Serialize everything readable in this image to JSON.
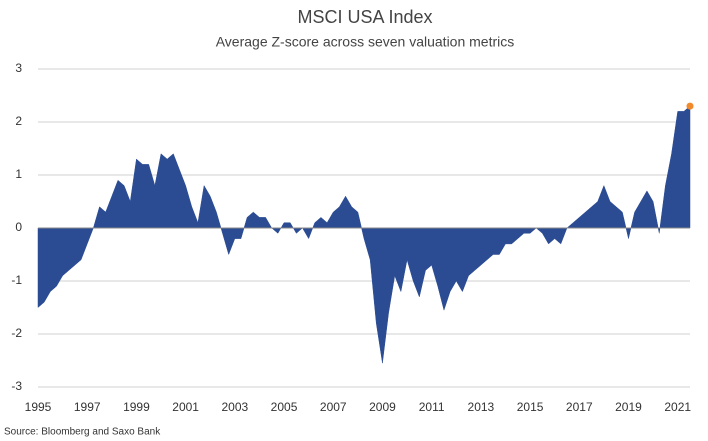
{
  "chart_data": {
    "type": "area",
    "title": "MSCI USA Index",
    "subtitle": "Average Z-score across seven valuation metrics",
    "source": "Source: Bloomberg and Saxo Bank",
    "x": [
      1995.0,
      1995.25,
      1995.5,
      1995.75,
      1996.0,
      1996.25,
      1996.5,
      1996.75,
      1997.0,
      1997.25,
      1997.5,
      1997.75,
      1998.0,
      1998.25,
      1998.5,
      1998.75,
      1999.0,
      1999.25,
      1999.5,
      1999.75,
      2000.0,
      2000.25,
      2000.5,
      2000.75,
      2001.0,
      2001.25,
      2001.5,
      2001.75,
      2002.0,
      2002.25,
      2002.5,
      2002.75,
      2003.0,
      2003.25,
      2003.5,
      2003.75,
      2004.0,
      2004.25,
      2004.5,
      2004.75,
      2005.0,
      2005.25,
      2005.5,
      2005.75,
      2006.0,
      2006.25,
      2006.5,
      2006.75,
      2007.0,
      2007.25,
      2007.5,
      2007.75,
      2008.0,
      2008.25,
      2008.5,
      2008.75,
      2009.0,
      2009.25,
      2009.5,
      2009.75,
      2010.0,
      2010.25,
      2010.5,
      2010.75,
      2011.0,
      2011.25,
      2011.5,
      2011.75,
      2012.0,
      2012.25,
      2012.5,
      2012.75,
      2013.0,
      2013.25,
      2013.5,
      2013.75,
      2014.0,
      2014.25,
      2014.5,
      2014.75,
      2015.0,
      2015.25,
      2015.5,
      2015.75,
      2016.0,
      2016.25,
      2016.5,
      2016.75,
      2017.0,
      2017.25,
      2017.5,
      2017.75,
      2018.0,
      2018.25,
      2018.5,
      2018.75,
      2019.0,
      2019.25,
      2019.5,
      2019.75,
      2020.0,
      2020.25,
      2020.5,
      2020.75,
      2021.0,
      2021.25,
      2021.5
    ],
    "series": [
      {
        "color": "#2b4c93",
        "highlight_color": "#f08a2c",
        "values": [
          -1.5,
          -1.4,
          -1.2,
          -1.1,
          -0.9,
          -0.8,
          -0.7,
          -0.6,
          -0.3,
          0.0,
          0.4,
          0.3,
          0.6,
          0.9,
          0.8,
          0.5,
          1.3,
          1.2,
          1.2,
          0.8,
          1.4,
          1.3,
          1.4,
          1.1,
          0.8,
          0.4,
          0.1,
          0.8,
          0.6,
          0.3,
          -0.1,
          -0.5,
          -0.2,
          -0.2,
          0.2,
          0.3,
          0.2,
          0.2,
          0.0,
          -0.1,
          0.1,
          0.1,
          -0.1,
          0.0,
          -0.2,
          0.1,
          0.2,
          0.1,
          0.3,
          0.4,
          0.6,
          0.4,
          0.3,
          -0.2,
          -0.6,
          -1.8,
          -2.55,
          -1.6,
          -0.9,
          -1.2,
          -0.6,
          -1.0,
          -1.3,
          -0.8,
          -0.7,
          -1.1,
          -1.55,
          -1.2,
          -1.0,
          -1.2,
          -0.9,
          -0.8,
          -0.7,
          -0.6,
          -0.5,
          -0.5,
          -0.3,
          -0.3,
          -0.2,
          -0.1,
          -0.1,
          0.0,
          -0.1,
          -0.3,
          -0.2,
          -0.3,
          0.0,
          0.1,
          0.2,
          0.3,
          0.4,
          0.5,
          0.8,
          0.5,
          0.4,
          0.3,
          -0.2,
          0.3,
          0.5,
          0.7,
          0.5,
          -0.1,
          0.8,
          1.4,
          2.2,
          2.2,
          2.3
        ]
      }
    ],
    "xlim": [
      1995,
      2021.5
    ],
    "xticks": [
      1995,
      1997,
      1999,
      2001,
      2003,
      2005,
      2007,
      2009,
      2011,
      2013,
      2015,
      2017,
      2019,
      2021
    ],
    "ylim": [
      -3,
      3
    ],
    "yticks": [
      -3,
      -2,
      -1,
      0,
      1,
      2,
      3
    ],
    "grid": true
  }
}
